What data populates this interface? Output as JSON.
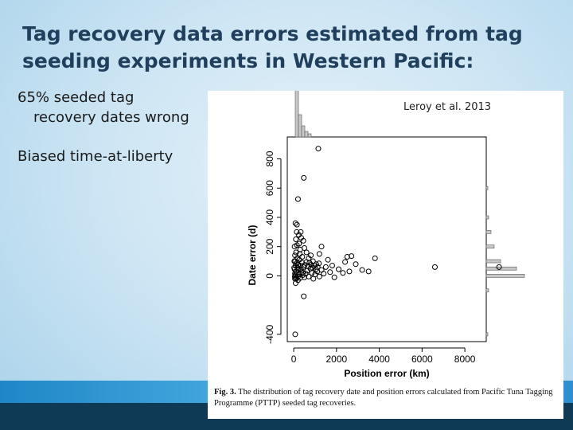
{
  "slide": {
    "title": "Tag recovery data errors estimated from tag seeding experiments in Western Pacific:",
    "bullets": [
      "65% seeded tag recovery dates wrong",
      "Biased time-at-liberty"
    ],
    "citation": "Leroy et al. 2013",
    "caption_label": "Fig. 3.",
    "caption_text": "The distribution of tag recovery date and position errors calculated from Pacific Tuna Tagging Programme (PTTP) seeded tag recoveries."
  },
  "colors": {
    "title": "#1f3f5c",
    "bar_light": "#2f8ecf",
    "bar_dark": "#0f3a55",
    "hist_fill": "#c8c8c8"
  },
  "chart_data": {
    "type": "scatter",
    "xlabel": "Position error (km)",
    "ylabel": "Date error (d)",
    "xlim": [
      -300,
      9000
    ],
    "ylim": [
      -450,
      950
    ],
    "x_ticks": [
      0,
      2000,
      4000,
      6000,
      8000
    ],
    "y_ticks": [
      -400,
      0,
      200,
      400,
      600,
      800
    ],
    "points": [
      [
        50,
        -5
      ],
      [
        80,
        5
      ],
      [
        120,
        -10
      ],
      [
        60,
        15
      ],
      [
        150,
        20
      ],
      [
        200,
        -5
      ],
      [
        100,
        30
      ],
      [
        40,
        45
      ],
      [
        250,
        10
      ],
      [
        300,
        -15
      ],
      [
        180,
        55
      ],
      [
        90,
        70
      ],
      [
        130,
        85
      ],
      [
        220,
        40
      ],
      [
        70,
        100
      ],
      [
        160,
        120
      ],
      [
        350,
        25
      ],
      [
        420,
        5
      ],
      [
        500,
        -10
      ],
      [
        560,
        15
      ],
      [
        630,
        35
      ],
      [
        700,
        -5
      ],
      [
        780,
        50
      ],
      [
        850,
        20
      ],
      [
        920,
        -20
      ],
      [
        1000,
        10
      ],
      [
        1100,
        30
      ],
      [
        1200,
        -5
      ],
      [
        1300,
        40
      ],
      [
        1400,
        15
      ],
      [
        1500,
        60
      ],
      [
        1700,
        25
      ],
      [
        1900,
        -10
      ],
      [
        2100,
        45
      ],
      [
        2300,
        20
      ],
      [
        2600,
        30
      ],
      [
        1600,
        110
      ],
      [
        1200,
        150
      ],
      [
        800,
        140
      ],
      [
        400,
        130
      ],
      [
        300,
        180
      ],
      [
        250,
        220
      ],
      [
        150,
        210
      ],
      [
        100,
        250
      ],
      [
        350,
        260
      ],
      [
        450,
        240
      ],
      [
        500,
        190
      ],
      [
        600,
        160
      ],
      [
        700,
        120
      ],
      [
        900,
        100
      ],
      [
        1050,
        80
      ],
      [
        1800,
        70
      ],
      [
        2400,
        95
      ],
      [
        2900,
        80
      ],
      [
        3200,
        40
      ],
      [
        3500,
        30
      ],
      [
        3800,
        120
      ],
      [
        2700,
        135
      ],
      [
        2500,
        130
      ],
      [
        1300,
        200
      ],
      [
        80,
        360
      ],
      [
        150,
        350
      ],
      [
        60,
        140
      ],
      [
        90,
        -50
      ],
      [
        60,
        -20
      ],
      [
        200,
        -30
      ],
      [
        1150,
        870
      ],
      [
        470,
        670
      ],
      [
        200,
        525
      ],
      [
        470,
        -140
      ],
      [
        70,
        -400
      ],
      [
        6600,
        60
      ],
      [
        9600,
        60
      ],
      [
        30,
        100
      ],
      [
        110,
        160
      ],
      [
        170,
        90
      ],
      [
        260,
        110
      ],
      [
        320,
        70
      ],
      [
        380,
        90
      ],
      [
        450,
        60
      ],
      [
        520,
        75
      ],
      [
        600,
        95
      ],
      [
        680,
        65
      ],
      [
        740,
        90
      ],
      [
        820,
        75
      ],
      [
        880,
        55
      ],
      [
        960,
        70
      ],
      [
        1040,
        45
      ],
      [
        1120,
        60
      ],
      [
        1180,
        85
      ],
      [
        140,
        300
      ],
      [
        330,
        300
      ],
      [
        240,
        280
      ],
      [
        40,
        200
      ],
      [
        280,
        150
      ],
      [
        210,
        75
      ],
      [
        340,
        45
      ],
      [
        110,
        -20
      ],
      [
        20,
        55
      ],
      [
        430,
        20
      ]
    ],
    "x_hist": [
      {
        "bin": 0,
        "count": 90
      },
      [
        1,
        40
      ],
      [
        2,
        18
      ],
      [
        3,
        9
      ],
      [
        4,
        5
      ],
      [
        5,
        3
      ]
    ],
    "y_hist": [
      [
        -400,
        1
      ],
      [
        -200,
        1
      ],
      [
        -100,
        2
      ],
      [
        0,
        60
      ],
      [
        50,
        95
      ],
      [
        100,
        25
      ],
      [
        200,
        12
      ],
      [
        300,
        6
      ],
      [
        400,
        3
      ],
      [
        500,
        2
      ],
      [
        600,
        1
      ],
      [
        800,
        2
      ]
    ]
  }
}
